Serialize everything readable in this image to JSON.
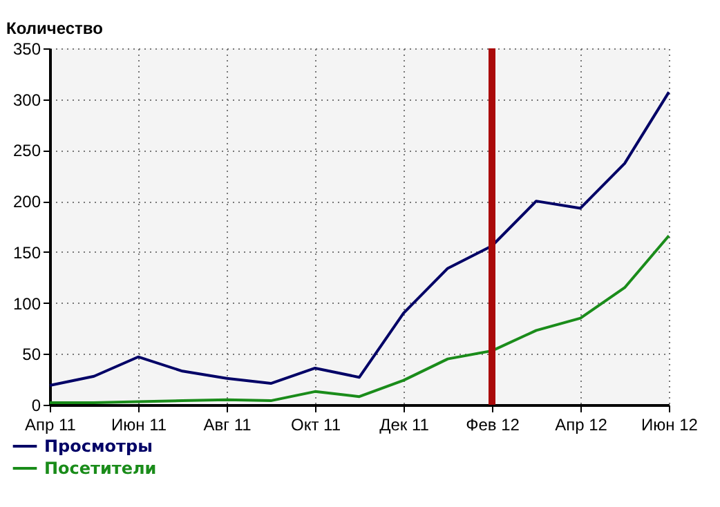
{
  "chart_data": {
    "type": "line",
    "ylabel": "Количество",
    "categories": [
      "Апр 11",
      null,
      "Июн 11",
      null,
      "Авг 11",
      null,
      "Окт 11",
      null,
      "Дек 11",
      null,
      "Фев 12",
      null,
      "Апр 12",
      null,
      "Июн 12"
    ],
    "series": [
      {
        "name": "Просмотры",
        "color": "#000066",
        "values": [
          19,
          28,
          47,
          33,
          26,
          21,
          36,
          27,
          90,
          134,
          156,
          200,
          193,
          237,
          307
        ]
      },
      {
        "name": "Посетители",
        "color": "#1a8c1a",
        "values": [
          2,
          2,
          3,
          4,
          5,
          4,
          13,
          8,
          24,
          45,
          53,
          73,
          85,
          115,
          166
        ]
      }
    ],
    "ylim": [
      0,
      350
    ],
    "yticks": [
      0,
      50,
      100,
      150,
      200,
      250,
      300,
      350
    ],
    "ref_lines": [
      {
        "axis": "x",
        "value": "Фев 12",
        "color": "#aa0a0a"
      }
    ],
    "grid": true,
    "legend": "bottom left",
    "marker": "none",
    "line_style": "solid"
  }
}
